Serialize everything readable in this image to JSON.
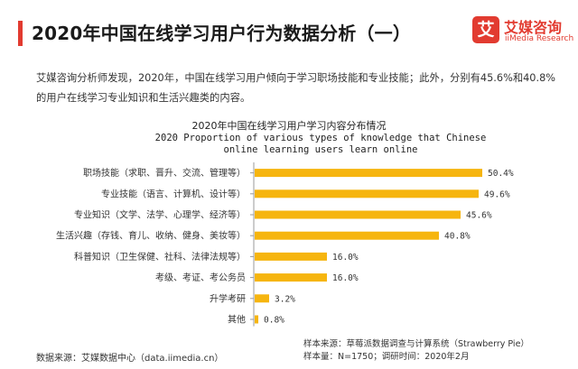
{
  "header": {
    "title": "2020年中国在线学习用户行为数据分析（一）"
  },
  "logo": {
    "mark": "艾",
    "name_cn": "艾媒咨询",
    "name_en": "iiMedia Research"
  },
  "summary": "艾媒咨询分析师发现，2020年，中国在线学习用户倾向于学习职场技能和专业技能；此外，分别有45.6%和40.8%的用户在线学习专业知识和生活兴趣类的内容。",
  "chart_data": {
    "type": "bar",
    "orientation": "horizontal",
    "title": "2020年中国在线学习用户学习内容分布情况",
    "subtitle": "2020 Proportion of various types of knowledge that Chinese online learning users learn online",
    "categories": [
      "职场技能（求职、晋升、交流、管理等）",
      "专业技能（语言、计算机、设计等）",
      "专业知识（文学、法学、心理学、经济等）",
      "生活兴趣（存钱、育儿、收纳、健身、美妆等）",
      "科普知识（卫生保健、社科、法律法规等）",
      "考级、考证、考公务员",
      "升学考研",
      "其他"
    ],
    "values": [
      50.4,
      49.6,
      45.6,
      40.8,
      16.0,
      16.0,
      3.2,
      0.8
    ],
    "value_labels": [
      "50.4%",
      "49.6%",
      "45.6%",
      "40.8%",
      "16.0%",
      "16.0%",
      "3.2%",
      "0.8%"
    ],
    "xlim": [
      0,
      60
    ],
    "grid": false,
    "legend": "none",
    "bar_color": "#f6b50f"
  },
  "footer": {
    "data_source": "数据来源：艾媒数据中心（data.iimedia.cn）",
    "sample_source": "样本来源：草莓派数据调查与计算系统（Strawberry Pie）",
    "sample_info": "样本量：N=1750；调研时间：2020年2月"
  }
}
